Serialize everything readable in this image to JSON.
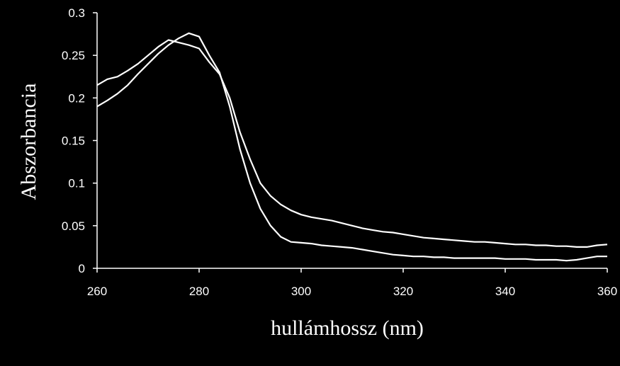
{
  "chart_data": {
    "type": "line",
    "title": "",
    "xlabel": "hullámhossz (nm)",
    "ylabel": "Abszorbancia",
    "xlim": [
      260,
      360
    ],
    "ylim": [
      0,
      0.3
    ],
    "x_ticks": [
      "260",
      "280",
      "300",
      "320",
      "340",
      "360"
    ],
    "y_ticks": [
      "0",
      "0.05",
      "0.1",
      "0.15",
      "0.2",
      "0.25",
      "0.3"
    ],
    "grid": false,
    "legend": "none",
    "colors": {
      "background": "#000000",
      "series": "#ffffff",
      "axis": "#ffffff"
    },
    "series": [
      {
        "x": [
          260,
          262,
          264,
          266,
          268,
          270,
          272,
          274,
          276,
          278,
          280,
          282,
          284,
          286,
          288,
          290,
          292,
          294,
          296,
          298,
          300,
          302,
          304,
          306,
          308,
          310,
          312,
          314,
          316,
          318,
          320,
          322,
          324,
          326,
          328,
          330,
          332,
          334,
          336,
          338,
          340,
          342,
          344,
          346,
          348,
          350,
          352,
          354,
          356,
          358,
          360
        ],
        "y": [
          0.215,
          0.222,
          0.225,
          0.232,
          0.24,
          0.25,
          0.26,
          0.268,
          0.265,
          0.262,
          0.258,
          0.242,
          0.228,
          0.2,
          0.16,
          0.128,
          0.1,
          0.085,
          0.075,
          0.068,
          0.063,
          0.06,
          0.058,
          0.056,
          0.053,
          0.05,
          0.047,
          0.045,
          0.043,
          0.042,
          0.04,
          0.038,
          0.036,
          0.035,
          0.034,
          0.033,
          0.032,
          0.031,
          0.031,
          0.03,
          0.029,
          0.028,
          0.028,
          0.027,
          0.027,
          0.026,
          0.026,
          0.025,
          0.025,
          0.027,
          0.028
        ]
      },
      {
        "x": [
          260,
          262,
          264,
          266,
          268,
          270,
          272,
          274,
          276,
          278,
          280,
          282,
          284,
          286,
          288,
          290,
          292,
          294,
          296,
          298,
          300,
          302,
          304,
          306,
          308,
          310,
          312,
          314,
          316,
          318,
          320,
          322,
          324,
          326,
          328,
          330,
          332,
          334,
          336,
          338,
          340,
          342,
          344,
          346,
          348,
          350,
          352,
          354,
          356,
          358,
          360
        ],
        "y": [
          0.19,
          0.197,
          0.205,
          0.215,
          0.228,
          0.24,
          0.252,
          0.262,
          0.27,
          0.276,
          0.272,
          0.25,
          0.23,
          0.19,
          0.14,
          0.1,
          0.07,
          0.05,
          0.037,
          0.031,
          0.03,
          0.029,
          0.027,
          0.026,
          0.025,
          0.024,
          0.022,
          0.02,
          0.018,
          0.016,
          0.015,
          0.014,
          0.014,
          0.013,
          0.013,
          0.012,
          0.012,
          0.012,
          0.012,
          0.012,
          0.011,
          0.011,
          0.011,
          0.01,
          0.01,
          0.01,
          0.009,
          0.01,
          0.012,
          0.014,
          0.014
        ]
      }
    ]
  }
}
